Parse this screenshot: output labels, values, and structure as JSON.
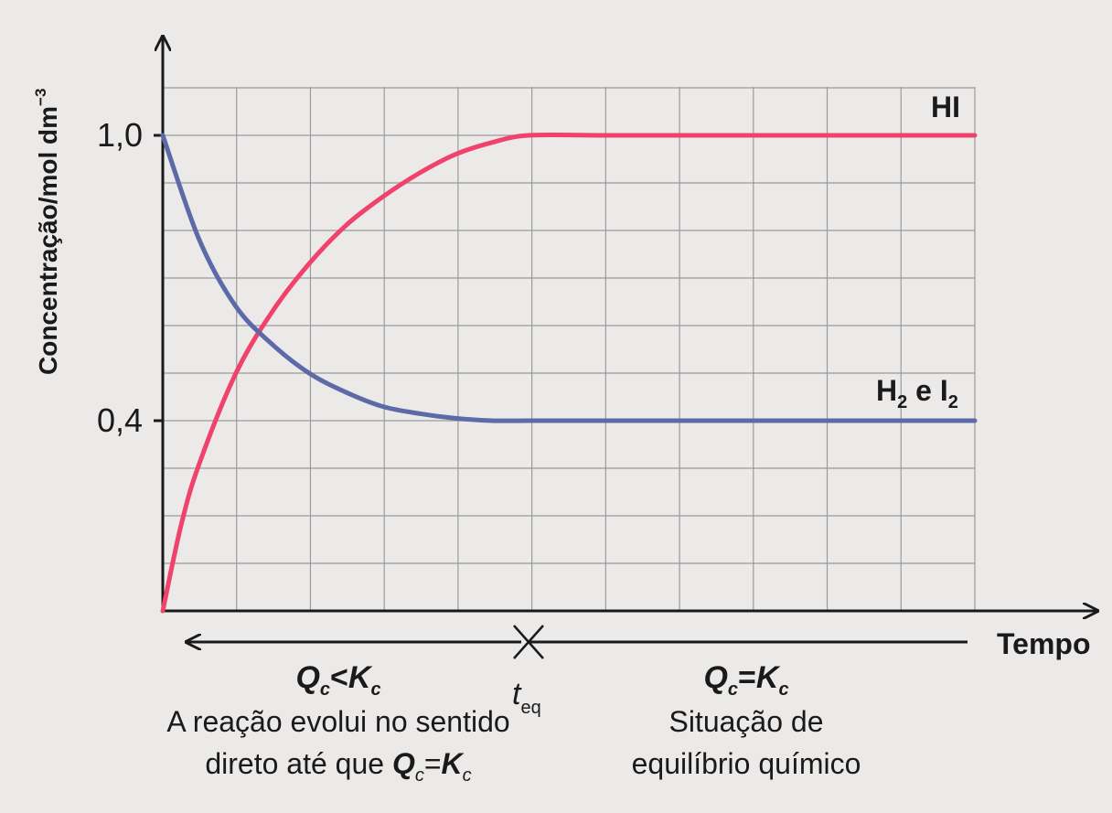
{
  "chart_data": {
    "type": "line",
    "ylabel": "Concentração/mol dm",
    "ylabel_exponent": "−3",
    "xlabel": "Tempo",
    "y_ticks": [
      {
        "value": 1.0,
        "label": "1,0"
      },
      {
        "value": 0.4,
        "label": "0,4"
      }
    ],
    "ylim": [
      0,
      1.15
    ],
    "xlim": [
      0,
      11.4
    ],
    "grid": true,
    "t_eq": 5,
    "t_eq_label_main": "t",
    "t_eq_label_sub": "eq",
    "series": [
      {
        "name": "HI",
        "color": "#f0426a",
        "x": [
          0,
          0.25,
          0.5,
          1,
          1.5,
          2,
          2.5,
          3,
          3.5,
          4,
          4.5,
          5,
          6,
          7,
          8,
          9,
          10,
          11.1
        ],
        "y": [
          0,
          0.18,
          0.31,
          0.5,
          0.63,
          0.73,
          0.81,
          0.87,
          0.92,
          0.96,
          0.985,
          1.0,
          1.0,
          1.0,
          1.0,
          1.0,
          1.0,
          1.0
        ]
      },
      {
        "name_base_1": "H",
        "name_sub_1": "2",
        "name_mid": " e I",
        "name_sub_2": "2",
        "color": "#5c6aa8",
        "x": [
          0,
          0.5,
          1,
          1.5,
          2,
          2.5,
          3,
          3.5,
          4,
          4.5,
          5,
          6,
          7,
          8,
          9,
          10,
          11.1
        ],
        "y": [
          1.0,
          0.78,
          0.64,
          0.56,
          0.5,
          0.46,
          0.43,
          0.415,
          0.405,
          0.4,
          0.4,
          0.4,
          0.4,
          0.4,
          0.4,
          0.4,
          0.4
        ]
      }
    ]
  },
  "captions": {
    "left_relation": {
      "q": "Q",
      "qsub": "c",
      "op": "<",
      "k": "K",
      "ksub": "c"
    },
    "left_line1": "A reação evolui no sentido",
    "left_line2_prefix": "direto até que ",
    "left_line2_q": "Q",
    "left_line2_qsub": "c",
    "left_line2_eq": "=",
    "left_line2_k": "K",
    "left_line2_ksub": "c",
    "right_relation": {
      "q": "Q",
      "qsub": "c",
      "op": "=",
      "k": "K",
      "ksub": "c"
    },
    "right_line1": "Situação de",
    "right_line2": "equilíbrio químico"
  }
}
